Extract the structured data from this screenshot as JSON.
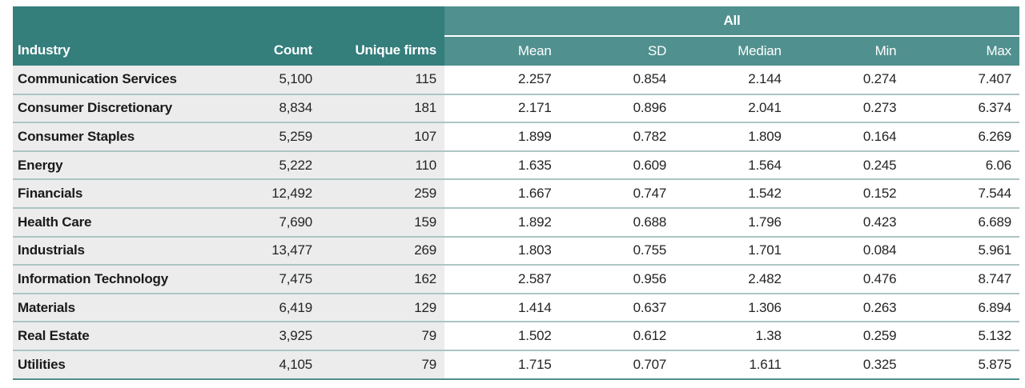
{
  "table": {
    "group_header": "All",
    "columns": {
      "industry": "Industry",
      "count": "Count",
      "unique_firms": "Unique firms",
      "mean": "Mean",
      "sd": "SD",
      "median": "Median",
      "min": "Min",
      "max": "Max"
    },
    "colors": {
      "header_dark_teal": "#347e7c",
      "header_light_teal": "#50908e",
      "body_left_background": "#ececec",
      "row_divider": "#aec4c3",
      "bottom_border": "#4f8f8d"
    },
    "rows": [
      {
        "industry": "Communication Services",
        "count": "5,100",
        "unique_firms": "115",
        "mean": "2.257",
        "sd": "0.854",
        "median": "2.144",
        "min": "0.274",
        "max": "7.407"
      },
      {
        "industry": "Consumer Discretionary",
        "count": "8,834",
        "unique_firms": "181",
        "mean": "2.171",
        "sd": "0.896",
        "median": "2.041",
        "min": "0.273",
        "max": "6.374"
      },
      {
        "industry": "Consumer Staples",
        "count": "5,259",
        "unique_firms": "107",
        "mean": "1.899",
        "sd": "0.782",
        "median": "1.809",
        "min": "0.164",
        "max": "6.269"
      },
      {
        "industry": "Energy",
        "count": "5,222",
        "unique_firms": "110",
        "mean": "1.635",
        "sd": "0.609",
        "median": "1.564",
        "min": "0.245",
        "max": "6.06"
      },
      {
        "industry": "Financials",
        "count": "12,492",
        "unique_firms": "259",
        "mean": "1.667",
        "sd": "0.747",
        "median": "1.542",
        "min": "0.152",
        "max": "7.544"
      },
      {
        "industry": "Health Care",
        "count": "7,690",
        "unique_firms": "159",
        "mean": "1.892",
        "sd": "0.688",
        "median": "1.796",
        "min": "0.423",
        "max": "6.689"
      },
      {
        "industry": "Industrials",
        "count": "13,477",
        "unique_firms": "269",
        "mean": "1.803",
        "sd": "0.755",
        "median": "1.701",
        "min": "0.084",
        "max": "5.961"
      },
      {
        "industry": "Information Technology",
        "count": "7,475",
        "unique_firms": "162",
        "mean": "2.587",
        "sd": "0.956",
        "median": "2.482",
        "min": "0.476",
        "max": "8.747"
      },
      {
        "industry": "Materials",
        "count": "6,419",
        "unique_firms": "129",
        "mean": "1.414",
        "sd": "0.637",
        "median": "1.306",
        "min": "0.263",
        "max": "6.894"
      },
      {
        "industry": "Real Estate",
        "count": "3,925",
        "unique_firms": "79",
        "mean": "1.502",
        "sd": "0.612",
        "median": "1.38",
        "min": "0.259",
        "max": "5.132"
      },
      {
        "industry": "Utilities",
        "count": "4,105",
        "unique_firms": "79",
        "mean": "1.715",
        "sd": "0.707",
        "median": "1.611",
        "min": "0.325",
        "max": "5.875"
      }
    ]
  }
}
